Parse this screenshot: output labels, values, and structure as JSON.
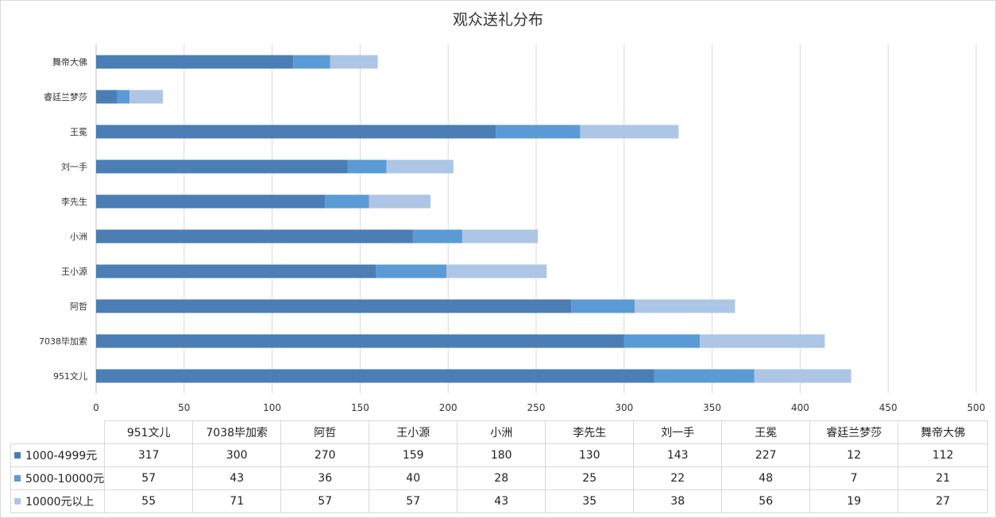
{
  "chart_data": {
    "type": "bar",
    "orientation": "horizontal",
    "stacked": true,
    "title": "观众送礼分布",
    "categories": [
      "951文儿",
      "7038毕加索",
      "阿哲",
      "王小源",
      "小洲",
      "李先生",
      "刘一手",
      "王冕",
      "睿廷兰梦莎",
      "舞帝大佛"
    ],
    "series": [
      {
        "name": "1000-4999元",
        "color": "#4a7eb4",
        "values": [
          317,
          300,
          270,
          159,
          180,
          130,
          143,
          227,
          12,
          112
        ]
      },
      {
        "name": "5000-10000元",
        "color": "#5b9bd5",
        "values": [
          57,
          43,
          36,
          40,
          28,
          25,
          22,
          48,
          7,
          21
        ]
      },
      {
        "name": "10000元以上",
        "color": "#adc6e6",
        "values": [
          55,
          71,
          57,
          57,
          43,
          35,
          38,
          56,
          19,
          27
        ]
      }
    ],
    "xlim": [
      0,
      500
    ],
    "xticks": [
      0,
      50,
      100,
      150,
      200,
      250,
      300,
      350,
      400,
      450,
      500
    ],
    "grid": true,
    "legend": "data table"
  }
}
